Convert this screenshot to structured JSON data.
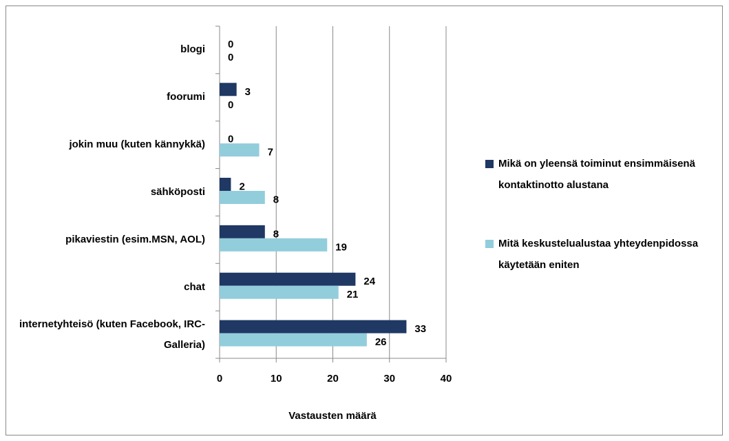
{
  "chart_data": {
    "type": "barh",
    "xlabel": "Vastausten määrä",
    "categories": [
      "blogi",
      "foorumi",
      "jokin muu (kuten kännykkä)",
      "sähköposti",
      "pikaviestin (esim.MSN, AOL)",
      "chat",
      "internetyhteisö (kuten Facebook, IRC-Galleria)"
    ],
    "series": [
      {
        "name": "Mikä on yleensä toiminut ensimmäisenä kontaktinotto alustana",
        "color": "#1f3864",
        "values": [
          0,
          3,
          0,
          2,
          8,
          24,
          33
        ]
      },
      {
        "name": "Mitä keskustelualustaa yhteydenpidossa käytetään eniten",
        "color": "#92cddc",
        "values": [
          0,
          0,
          7,
          8,
          19,
          21,
          26
        ]
      }
    ],
    "xlim": [
      0,
      40
    ],
    "xticks": [
      0,
      10,
      20,
      30,
      40
    ],
    "grid": true,
    "legend": "right"
  }
}
